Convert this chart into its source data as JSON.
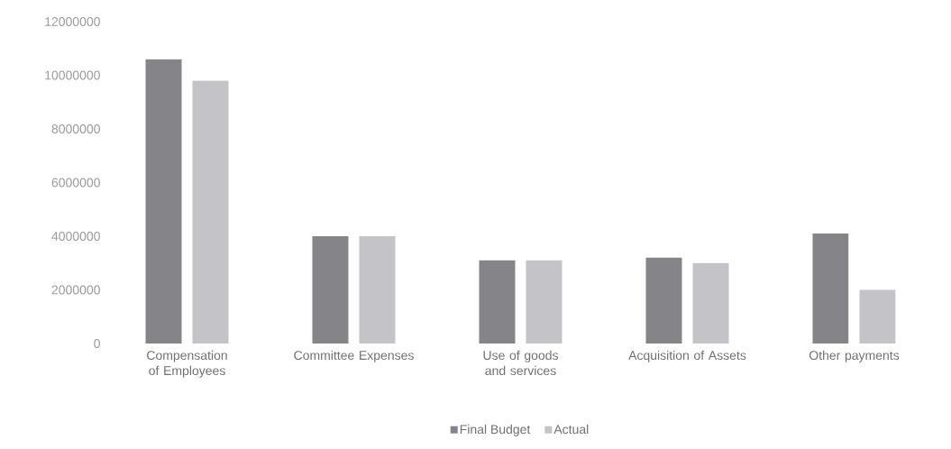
{
  "chart_data": {
    "type": "bar",
    "categories": [
      "Compensation of Employees",
      "Committee Expenses",
      "Use of goods and services",
      "Acquisition of Assets",
      "Other payments"
    ],
    "series": [
      {
        "name": "Final Budget",
        "color": "#858489",
        "values": [
          10600000,
          4000000,
          3100000,
          3200000,
          4100000
        ]
      },
      {
        "name": "Actual",
        "color": "#c3c3c8",
        "values": [
          9800000,
          4000000,
          3100000,
          3000000,
          2000000
        ]
      }
    ],
    "ylim": [
      0,
      12000000
    ],
    "yticks": [
      0,
      2000000,
      4000000,
      6000000,
      8000000,
      10000000,
      12000000
    ],
    "legend": "bottom"
  }
}
